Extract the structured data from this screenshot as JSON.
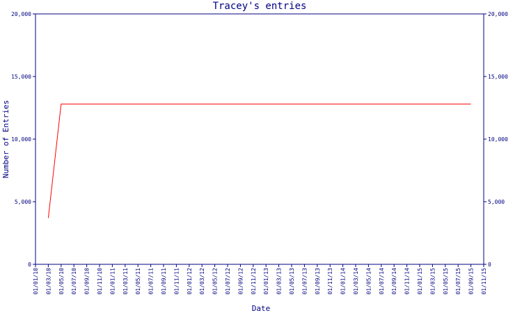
{
  "chart_data": {
    "type": "line",
    "title": "Tracey's entries",
    "x_label": "Date",
    "y_label": "Number of Entries",
    "categories": [
      "01/01/10",
      "01/03/10",
      "01/05/10",
      "01/07/10",
      "01/09/10",
      "01/11/10",
      "01/01/11",
      "01/03/11",
      "01/05/11",
      "01/07/11",
      "01/09/11",
      "01/11/11",
      "01/01/12",
      "01/03/12",
      "01/05/12",
      "01/07/12",
      "01/09/12",
      "01/11/12",
      "01/01/13",
      "01/03/13",
      "01/05/13",
      "01/07/13",
      "01/09/13",
      "01/11/13",
      "01/01/14",
      "01/03/14",
      "01/05/14",
      "01/07/14",
      "01/09/14",
      "01/11/14",
      "01/01/15",
      "01/03/15",
      "01/05/15",
      "01/07/15",
      "01/09/15",
      "01/11/15"
    ],
    "values": [
      null,
      3700,
      12800,
      12800,
      12800,
      12800,
      12800,
      12800,
      12800,
      12800,
      12800,
      12800,
      12800,
      12800,
      12800,
      12800,
      12800,
      12800,
      12800,
      12800,
      12800,
      12800,
      12800,
      12800,
      12800,
      12800,
      12800,
      12800,
      12800,
      12800,
      12800,
      12800,
      12800,
      12800,
      12800,
      null
    ],
    "color": "#ff0000",
    "ylim": [
      0,
      20000
    ],
    "yticks": [
      0,
      {
        "value": 5000,
        "label": "5,000"
      },
      {
        "value": 10000,
        "label": "10,000"
      },
      {
        "value": 15000,
        "label": "15,000"
      },
      {
        "value": 20000,
        "label": "20,000"
      }
    ],
    "y2lim": [
      0,
      20000
    ],
    "y2ticks": [
      0,
      {
        "value": 5000,
        "label": "5,000"
      },
      {
        "value": 10000,
        "label": "10,000"
      },
      {
        "value": 15000,
        "label": "15,000"
      },
      {
        "value": 20000,
        "label": "20,000"
      }
    ]
  }
}
